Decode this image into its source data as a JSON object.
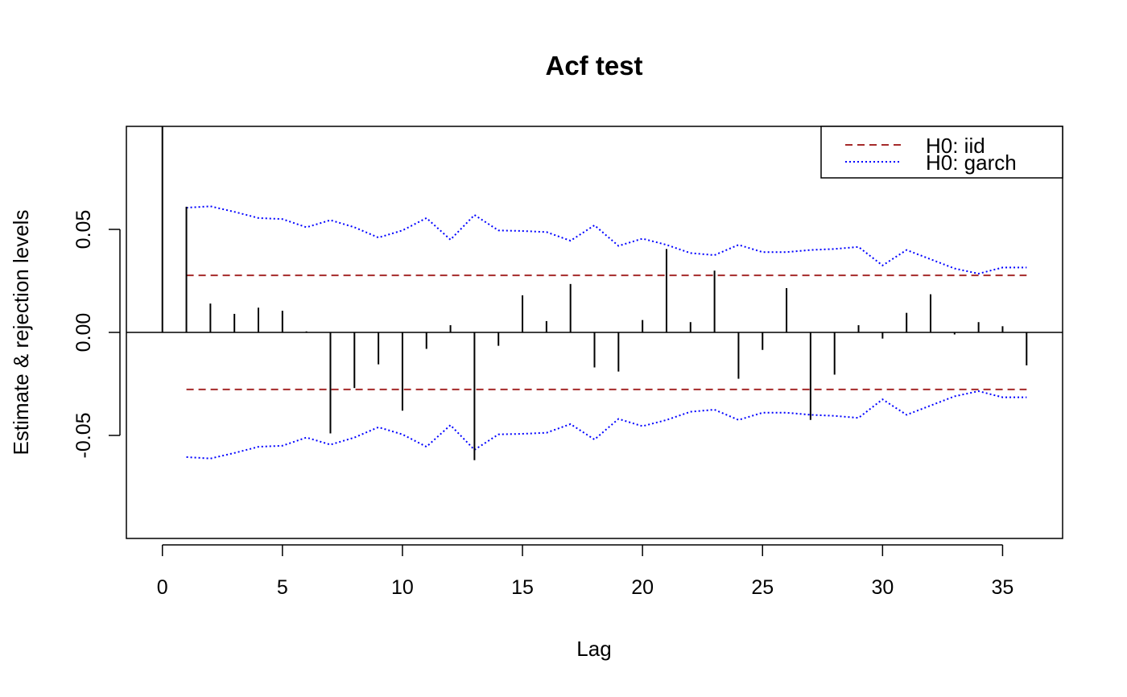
{
  "chart_data": {
    "type": "bar",
    "title": "Acf test",
    "xlabel": "Lag",
    "ylabel": "Estimate & rejection levels",
    "xlim": [
      -1.5,
      37.5
    ],
    "ylim": [
      -0.1,
      0.1
    ],
    "xticks": [
      "0",
      "5",
      "10",
      "15",
      "20",
      "25",
      "30",
      "35"
    ],
    "xtick_values": [
      0,
      5,
      10,
      15,
      20,
      25,
      30,
      35
    ],
    "yticks": [
      "-0.05",
      "0.00",
      "0.05"
    ],
    "ytick_values": [
      -0.05,
      0,
      0.05
    ],
    "lags": [
      0,
      1,
      2,
      3,
      4,
      5,
      6,
      7,
      8,
      9,
      10,
      11,
      12,
      13,
      14,
      15,
      16,
      17,
      18,
      19,
      20,
      21,
      22,
      23,
      24,
      25,
      26,
      27,
      28,
      29,
      30,
      31,
      32,
      33,
      34,
      35,
      36
    ],
    "acf": [
      1.0,
      0.061,
      0.014,
      0.009,
      0.012,
      0.0105,
      0.0005,
      -0.049,
      -0.027,
      -0.0155,
      -0.038,
      -0.008,
      0.0035,
      -0.062,
      -0.0065,
      0.018,
      0.0055,
      0.0235,
      -0.017,
      -0.019,
      0.006,
      0.0405,
      0.005,
      0.03,
      -0.0225,
      -0.0085,
      0.0215,
      -0.0425,
      -0.0205,
      0.0035,
      -0.003,
      0.0095,
      0.0185,
      -0.001,
      0.005,
      0.003,
      -0.016
    ],
    "series": [
      {
        "name": "H0: iid",
        "color": "#A52A2A",
        "style": "dashed",
        "x": [
          1,
          36
        ],
        "upper": [
          0.0277,
          0.0277
        ],
        "lower": [
          -0.0277,
          -0.0277
        ]
      },
      {
        "name": "H0: garch",
        "color": "#0000FF",
        "style": "dotted",
        "x": [
          1,
          2,
          3,
          4,
          5,
          6,
          7,
          8,
          9,
          10,
          11,
          12,
          13,
          14,
          15,
          16,
          17,
          18,
          19,
          20,
          21,
          22,
          23,
          24,
          25,
          26,
          27,
          28,
          29,
          30,
          31,
          32,
          33,
          34,
          35,
          36
        ],
        "upper": [
          0.0605,
          0.0612,
          0.0585,
          0.0555,
          0.055,
          0.051,
          0.0545,
          0.051,
          0.046,
          0.0495,
          0.0555,
          0.045,
          0.057,
          0.0495,
          0.0492,
          0.0487,
          0.0445,
          0.052,
          0.042,
          0.0455,
          0.0425,
          0.0385,
          0.0375,
          0.0425,
          0.039,
          0.039,
          0.04,
          0.0405,
          0.0415,
          0.0325,
          0.04,
          0.0355,
          0.031,
          0.0285,
          0.0315,
          0.0315
        ],
        "lower": [
          -0.0605,
          -0.0612,
          -0.0585,
          -0.0555,
          -0.055,
          -0.051,
          -0.0545,
          -0.051,
          -0.046,
          -0.0495,
          -0.0555,
          -0.045,
          -0.057,
          -0.0495,
          -0.0492,
          -0.0487,
          -0.0445,
          -0.052,
          -0.042,
          -0.0455,
          -0.0425,
          -0.0385,
          -0.0375,
          -0.0425,
          -0.039,
          -0.039,
          -0.04,
          -0.0405,
          -0.0415,
          -0.0325,
          -0.04,
          -0.0355,
          -0.031,
          -0.0285,
          -0.0315,
          -0.0315
        ]
      }
    ],
    "legend_position": "top-right",
    "grid": false
  }
}
